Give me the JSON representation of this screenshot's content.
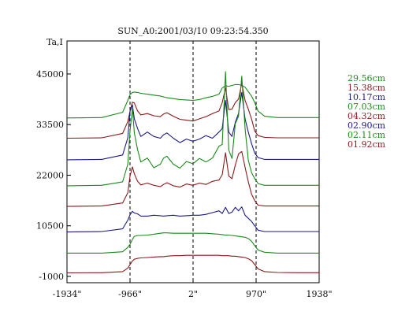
{
  "chart_data": {
    "type": "line",
    "title": "SUN_A0:2001/03/10 09:23:54.350",
    "ylabel": "Ta,I",
    "xlabel": "",
    "xlim": [
      -1934,
      1938
    ],
    "ylim": [
      -1000,
      50000
    ],
    "x_ticks": [
      "-1934\"",
      "-966\"",
      "2\"",
      "970\"",
      "1938\""
    ],
    "x_tick_values": [
      -1934,
      -966,
      2,
      970,
      1938
    ],
    "y_ticks": [
      "45000",
      "33500",
      "22000",
      "10500",
      "-1000"
    ],
    "y_tick_values": [
      45000,
      33500,
      22000,
      10500,
      -1000
    ],
    "vlines": [
      -966,
      2,
      970
    ],
    "grid": false,
    "legend_position": "right",
    "x": [
      -1934,
      -1400,
      -1080,
      -1000,
      -966,
      -930,
      -900,
      -850,
      -800,
      -700,
      -600,
      -500,
      -450,
      -400,
      -300,
      -200,
      -100,
      0,
      100,
      200,
      300,
      400,
      450,
      500,
      550,
      600,
      650,
      700,
      750,
      800,
      850,
      900,
      950,
      1000,
      1100,
      1300,
      1600,
      1938
    ],
    "series": [
      {
        "name": "29.56cm",
        "color": "#1a8a1a",
        "values": [
          35000,
          35100,
          36300,
          39000,
          40300,
          40800,
          40900,
          40800,
          40600,
          40400,
          40200,
          40000,
          39800,
          39600,
          39400,
          39200,
          39100,
          39000,
          39200,
          39600,
          39900,
          40400,
          41800,
          42300,
          42200,
          42400,
          42600,
          42600,
          42400,
          42000,
          41000,
          40000,
          38500,
          36600,
          35400,
          35100,
          35100,
          35100
        ]
      },
      {
        "name": "15.38cm",
        "color": "#8b1a1a",
        "values": [
          30400,
          30500,
          31500,
          34200,
          36500,
          38600,
          38400,
          36600,
          35700,
          36000,
          35500,
          35300,
          35900,
          36200,
          35400,
          34700,
          34500,
          34300,
          34800,
          35300,
          36000,
          36600,
          38500,
          41800,
          36900,
          37000,
          38500,
          39300,
          42900,
          39000,
          37000,
          34800,
          32000,
          31000,
          30600,
          30500,
          30500,
          30500
        ]
      },
      {
        "name": "10.17cm",
        "color": "#1a1a8a",
        "values": [
          25500,
          25600,
          26600,
          30500,
          36500,
          38000,
          34800,
          32600,
          30800,
          31800,
          30800,
          30400,
          31200,
          31600,
          30400,
          29400,
          30200,
          29700,
          30200,
          31000,
          30400,
          31800,
          32600,
          39000,
          31800,
          30800,
          34000,
          36000,
          40800,
          34800,
          31800,
          29200,
          27000,
          26000,
          25600,
          25600,
          25600,
          25600
        ]
      },
      {
        "name": "07.03cm",
        "color": "#1a8a1a",
        "values": [
          19600,
          19700,
          20500,
          24500,
          32000,
          37200,
          31600,
          27800,
          25000,
          25900,
          23700,
          24500,
          25900,
          26300,
          24500,
          23600,
          25100,
          24600,
          25800,
          25000,
          25900,
          28600,
          29000,
          45500,
          27700,
          25800,
          33700,
          35400,
          44500,
          32600,
          25400,
          22600,
          21200,
          20100,
          19700,
          19700,
          19700,
          19700
        ]
      },
      {
        "name": "04.32cm",
        "color": "#8b1a1a",
        "values": [
          14900,
          15000,
          15700,
          18000,
          21800,
          23900,
          22300,
          20600,
          19800,
          20200,
          19700,
          19400,
          19900,
          20300,
          19600,
          19300,
          20000,
          19700,
          20200,
          19900,
          20600,
          20900,
          22100,
          27100,
          21800,
          21200,
          24300,
          26800,
          27400,
          23800,
          20500,
          17700,
          16200,
          15200,
          15000,
          15000,
          15000,
          15000
        ]
      },
      {
        "name": "02.90cm",
        "color": "#1a1a8a",
        "values": [
          9100,
          9200,
          9800,
          11800,
          13000,
          13800,
          13400,
          13200,
          12700,
          12700,
          12900,
          12800,
          12700,
          12800,
          12900,
          12700,
          12800,
          12900,
          12900,
          13100,
          13500,
          13900,
          13300,
          14700,
          13300,
          13600,
          14700,
          13900,
          14800,
          12900,
          12200,
          11500,
          10500,
          9500,
          9200,
          9200,
          9200,
          9200
        ]
      },
      {
        "name": "02.11cm",
        "color": "#1a8a1a",
        "values": [
          4300,
          4300,
          4600,
          5600,
          6300,
          7400,
          8100,
          8300,
          8300,
          8400,
          8600,
          8800,
          8900,
          8900,
          8800,
          8800,
          8800,
          8800,
          8800,
          8800,
          8700,
          8600,
          8500,
          8400,
          8400,
          8300,
          8200,
          8100,
          8000,
          7900,
          7600,
          7000,
          6000,
          5000,
          4500,
          4300,
          4300,
          4300
        ]
      },
      {
        "name": "01.92cm",
        "color": "#8b1a1a",
        "values": [
          -200,
          -150,
          100,
          900,
          1700,
          2500,
          2900,
          3100,
          3200,
          3300,
          3400,
          3500,
          3500,
          3600,
          3700,
          3700,
          3800,
          3800,
          3800,
          3800,
          3800,
          3800,
          3700,
          3700,
          3700,
          3600,
          3600,
          3500,
          3400,
          3300,
          3000,
          2600,
          1700,
          700,
          100,
          -100,
          -150,
          -150
        ]
      }
    ]
  }
}
